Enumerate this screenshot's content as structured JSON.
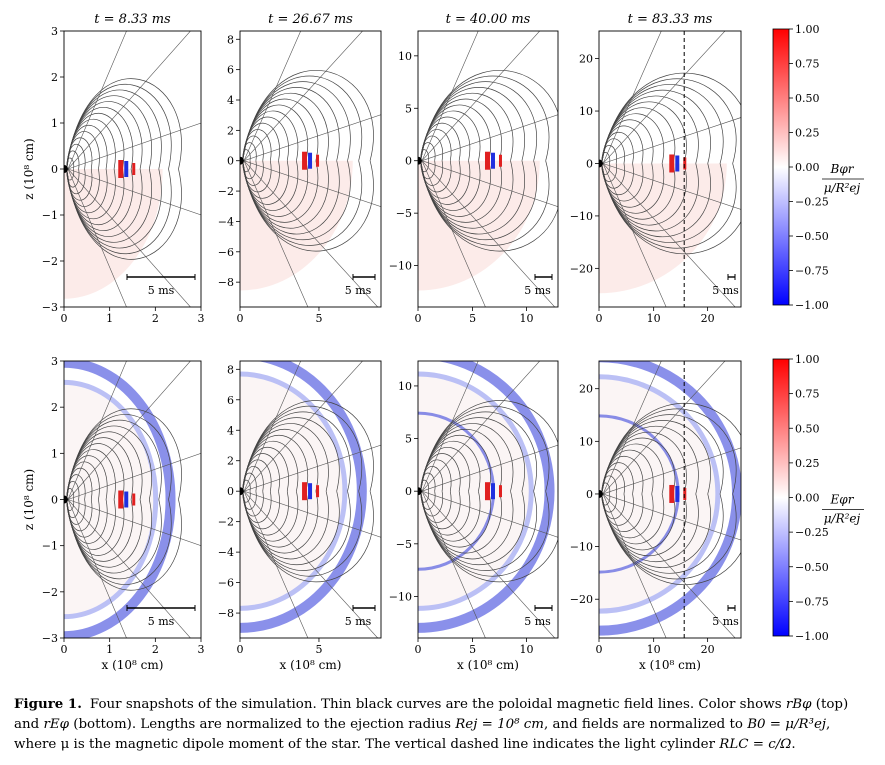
{
  "figure": {
    "snapshots": [
      {
        "time": "t = 8.33 ms",
        "xticks": [
          "0",
          "1",
          "2",
          "3"
        ],
        "yticks": [
          "3",
          "2",
          "1",
          "0",
          "−1",
          "−2",
          "−3"
        ],
        "scale_bar": "5 ms",
        "light_cylinder": false
      },
      {
        "time": "t = 26.67 ms",
        "xticks": [
          "0",
          "5"
        ],
        "yticks": [
          "8",
          "6",
          "4",
          "2",
          "0",
          "−2",
          "−4",
          "−6",
          "−8"
        ],
        "scale_bar": "5 ms",
        "light_cylinder": false
      },
      {
        "time": "t = 40.00 ms",
        "xticks": [
          "0",
          "5",
          "10"
        ],
        "yticks": [
          "10",
          "5",
          "0",
          "−5",
          "−10"
        ],
        "scale_bar": "5 ms",
        "light_cylinder": false
      },
      {
        "time": "t = 83.33 ms",
        "xticks": [
          "0",
          "10",
          "20"
        ],
        "yticks": [
          "20",
          "10",
          "0",
          "−10",
          "−20"
        ],
        "scale_bar": "5 ms",
        "light_cylinder": true
      }
    ],
    "row_quantities": [
      "Bφ r",
      "Eφ r"
    ],
    "xlabel": "x (10⁸ cm)",
    "ylabel": "z (10⁸ cm)",
    "colorbar": {
      "ticks": [
        "1.00",
        "0.75",
        "0.50",
        "0.25",
        "0.00",
        "−0.25",
        "−0.50",
        "−0.75",
        "−1.00"
      ],
      "top_numerator": "Bφr",
      "bottom_numerator": "Eφr",
      "denominator": "μ/R²ej",
      "colors": {
        "positive": "#ff0000",
        "zero": "#ffffff",
        "negative": "#0000ff"
      }
    }
  },
  "caption": {
    "label": "Figure 1.",
    "text_1": "Four snapshots of the simulation. Thin black curves are the poloidal magnetic field lines. Color shows ",
    "sym_1": "rBφ",
    "text_2": " (top) and ",
    "sym_2": "rEφ",
    "text_3": " (bottom). Lengths are normalized to the ejection radius ",
    "sym_3": "Rej = 10⁸ cm",
    "text_4": ", and fields are normalized to ",
    "sym_4": "B0 = μ/R³ej",
    "text_5": ", where μ is the magnetic dipole moment of the star. The vertical dashed line indicates the light cylinder ",
    "sym_5": "RLC = c/Ω",
    "text_6": "."
  }
}
